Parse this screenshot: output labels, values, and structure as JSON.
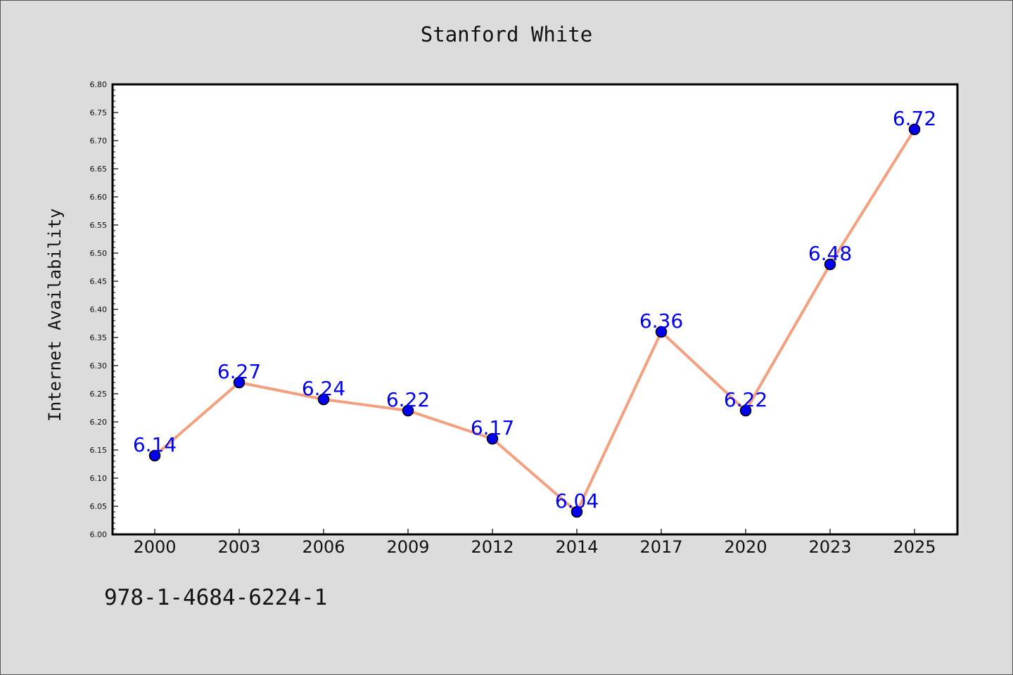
{
  "page": {
    "background": "#dcdcdc"
  },
  "isbn_text": "978-1-4684-6224-1",
  "chart_data": {
    "type": "line",
    "title": "Stanford White",
    "xlabel": "",
    "ylabel": "Internet Availability",
    "categories": [
      "2000",
      "2003",
      "2006",
      "2009",
      "2012",
      "2014",
      "2017",
      "2020",
      "2023",
      "2025"
    ],
    "values": [
      6.14,
      6.27,
      6.24,
      6.22,
      6.17,
      6.04,
      6.36,
      6.22,
      6.48,
      6.72
    ],
    "data_labels": [
      "6.14",
      "6.27",
      "6.24",
      "6.22",
      "6.17",
      "6.04",
      "6.36",
      "6.22",
      "6.48",
      "6.72"
    ],
    "ylim": [
      6.0,
      6.8
    ],
    "yticks": [
      "6.00",
      "6.05",
      "6.10",
      "6.15",
      "6.20",
      "6.25",
      "6.30",
      "6.35",
      "6.40",
      "6.45",
      "6.50",
      "6.55",
      "6.60",
      "6.65",
      "6.70",
      "6.75",
      "6.80"
    ],
    "grid": false,
    "legend": "none",
    "colors": {
      "line": "#f4a07f",
      "marker_fill": "#0000ee",
      "marker_stroke": "#000000",
      "data_label": "#0000ee",
      "plot_background": "#ffffff",
      "axes": "#000000"
    }
  }
}
